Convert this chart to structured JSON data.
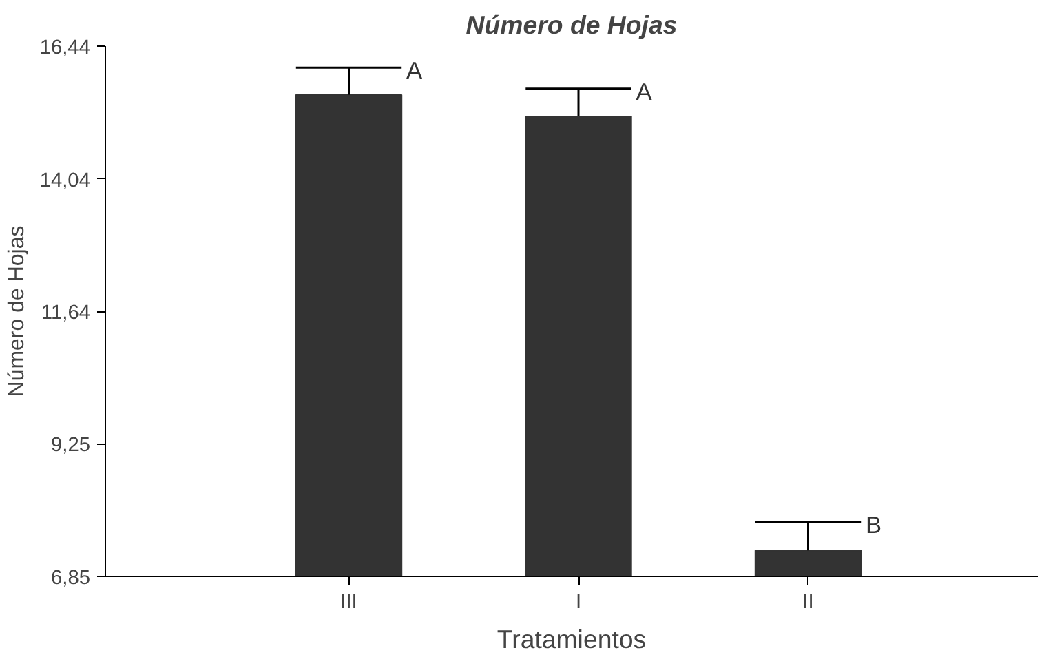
{
  "chart_data": {
    "type": "bar",
    "title": "Número de Hojas",
    "xlabel": "Tratamientos",
    "ylabel": "Número de Hojas",
    "categories": [
      "III",
      "I",
      "II"
    ],
    "values": [
      15.56,
      15.17,
      7.32
    ],
    "color": "#333333",
    "errors": [
      [
        15.56,
        16.05
      ],
      [
        15.17,
        15.67
      ],
      [
        7.32,
        7.84
      ]
    ],
    "ylim": [
      6.85,
      16.44
    ],
    "yticks": [
      {
        "value": 6.85,
        "label": "6,85"
      },
      {
        "value": 9.25,
        "label": "9,25"
      },
      {
        "value": 11.64,
        "label": "11,64"
      },
      {
        "value": 14.04,
        "label": "14,04"
      },
      {
        "value": 16.44,
        "label": "16,44"
      }
    ],
    "annotations": [
      {
        "text": "A",
        "x": "III",
        "y": 16.05
      },
      {
        "text": "A",
        "x": "I",
        "y": 15.67
      },
      {
        "text": "B",
        "x": "II",
        "y": 7.84
      }
    ],
    "grid": false
  }
}
